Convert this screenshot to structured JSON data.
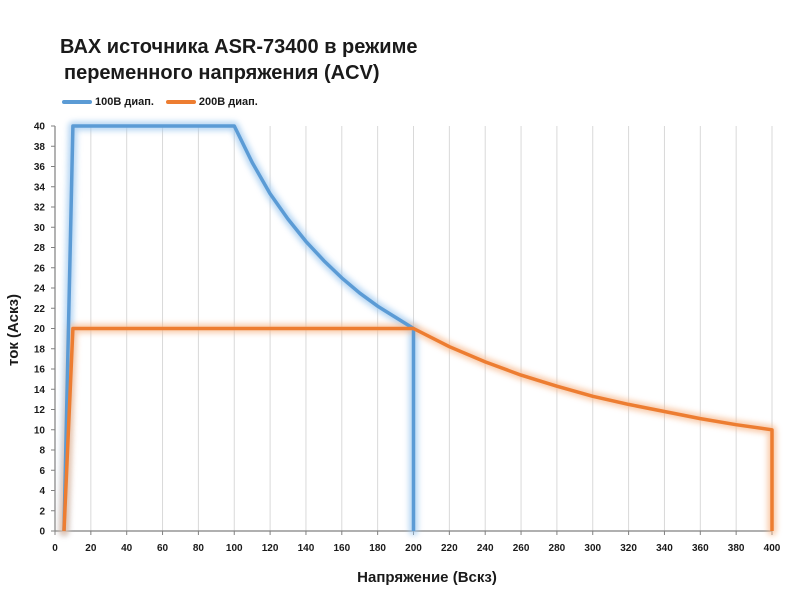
{
  "chart_data": {
    "type": "line",
    "title_lines": [
      "ВАХ источника ASR-73400 в режиме",
      "переменного напряжения (ACV)"
    ],
    "xlabel": "Напряжение (Вскз)",
    "ylabel": "ток (Аскз)",
    "xlim": [
      0,
      400
    ],
    "ylim": [
      0,
      40
    ],
    "x_ticks": [
      0,
      20,
      40,
      60,
      80,
      100,
      120,
      140,
      160,
      180,
      200,
      220,
      240,
      260,
      280,
      300,
      320,
      340,
      360,
      380,
      400
    ],
    "y_ticks": [
      0,
      2,
      4,
      6,
      8,
      10,
      12,
      14,
      16,
      18,
      20,
      22,
      24,
      26,
      28,
      30,
      32,
      34,
      36,
      38,
      40
    ],
    "grid": "vertical",
    "legend_position": "top-left",
    "series": [
      {
        "name": "100В диап.",
        "color": "#5b9bd5",
        "glow": "#9cc7ef",
        "points": [
          [
            5,
            0
          ],
          [
            10,
            40
          ],
          [
            100,
            40
          ],
          [
            110,
            36.4
          ],
          [
            120,
            33.3
          ],
          [
            130,
            30.8
          ],
          [
            140,
            28.6
          ],
          [
            150,
            26.7
          ],
          [
            160,
            25
          ],
          [
            170,
            23.5
          ],
          [
            180,
            22.2
          ],
          [
            190,
            21.1
          ],
          [
            200,
            20
          ],
          [
            200,
            0
          ]
        ]
      },
      {
        "name": "200В диап.",
        "color": "#ed7d31",
        "glow": "#f7b98e",
        "points": [
          [
            5,
            0
          ],
          [
            10,
            20
          ],
          [
            200,
            20
          ],
          [
            220,
            18.2
          ],
          [
            240,
            16.7
          ],
          [
            260,
            15.4
          ],
          [
            280,
            14.3
          ],
          [
            300,
            13.3
          ],
          [
            320,
            12.5
          ],
          [
            340,
            11.8
          ],
          [
            360,
            11.1
          ],
          [
            380,
            10.5
          ],
          [
            400,
            10
          ],
          [
            400,
            0
          ]
        ]
      }
    ]
  }
}
